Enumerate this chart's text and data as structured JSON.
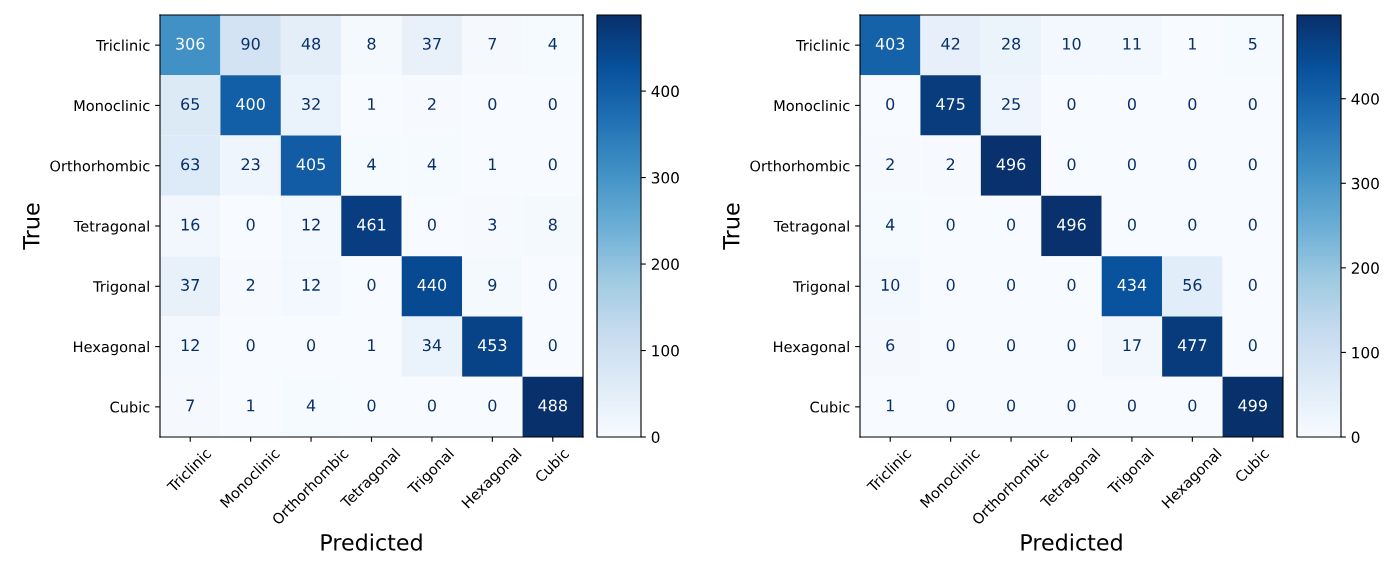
{
  "chart_data": [
    {
      "type": "heatmap",
      "xlabel": "Predicted",
      "ylabel": "True",
      "categories": [
        "Triclinic",
        "Monoclinic",
        "Orthorhombic",
        "Tetragonal",
        "Trigonal",
        "Hexagonal",
        "Cubic"
      ],
      "y_categories": [
        "Triclinic",
        "Monoclinic",
        "Orthorhombic",
        "Tetragonal",
        "Trigonal",
        "Hexagonal",
        "Cubic"
      ],
      "cells": [
        [
          306,
          90,
          48,
          8,
          37,
          7,
          4
        ],
        [
          65,
          400,
          32,
          1,
          2,
          0,
          0
        ],
        [
          63,
          23,
          405,
          4,
          4,
          1,
          0
        ],
        [
          16,
          0,
          12,
          461,
          0,
          3,
          8
        ],
        [
          37,
          2,
          12,
          0,
          440,
          9,
          0
        ],
        [
          12,
          0,
          0,
          1,
          34,
          453,
          0
        ],
        [
          7,
          1,
          4,
          0,
          0,
          0,
          488
        ]
      ],
      "clim": [
        0,
        488
      ],
      "cticks": [
        0,
        100,
        200,
        300,
        400
      ],
      "data_labels": true
    },
    {
      "type": "heatmap",
      "xlabel": "Predicted",
      "ylabel": "True",
      "categories": [
        "Triclinic",
        "Monoclinic",
        "Orthorhombic",
        "Tetragonal",
        "Trigonal",
        "Hexagonal",
        "Cubic"
      ],
      "y_categories": [
        "Triclinic",
        "Monoclinic",
        "Orthorhombic",
        "Tetragonal",
        "Trigonal",
        "Hexagonal",
        "Cubic"
      ],
      "cells": [
        [
          403,
          42,
          28,
          10,
          11,
          1,
          5
        ],
        [
          0,
          475,
          25,
          0,
          0,
          0,
          0
        ],
        [
          2,
          2,
          496,
          0,
          0,
          0,
          0
        ],
        [
          4,
          0,
          0,
          496,
          0,
          0,
          0
        ],
        [
          10,
          0,
          0,
          0,
          434,
          56,
          0
        ],
        [
          6,
          0,
          0,
          0,
          17,
          477,
          0
        ],
        [
          1,
          0,
          0,
          0,
          0,
          0,
          499
        ]
      ],
      "clim": [
        0,
        499
      ],
      "cticks": [
        0,
        100,
        200,
        300,
        400
      ],
      "data_labels": true
    }
  ]
}
